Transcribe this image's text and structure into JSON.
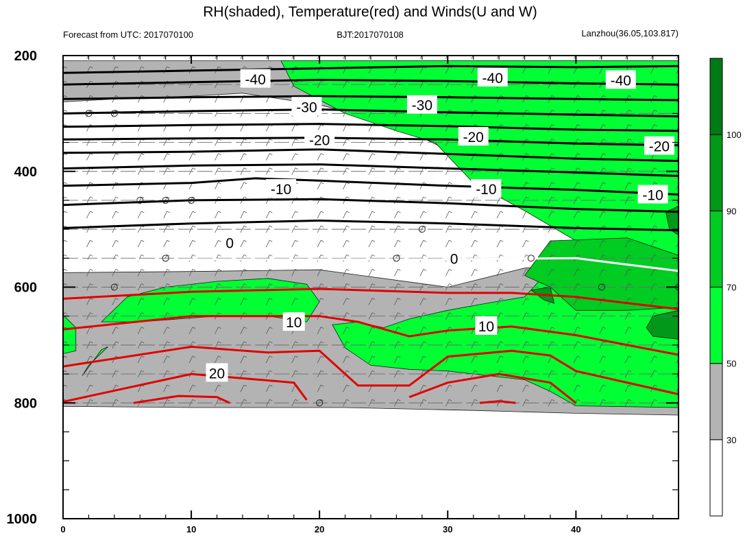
{
  "header": {
    "title": "RH(shaded), Temperature(red) and Winds(U and W)",
    "left": "Forecast from UTC: 2017070100",
    "center": "BJT:2017070108",
    "right": "Lanzhou(36.05,103.817)"
  },
  "chart_data": {
    "type": "heatmap",
    "x": {
      "range": [
        0,
        48
      ],
      "ticks": [
        0,
        10,
        20,
        30,
        40
      ],
      "tick_labels": [
        "0",
        "10",
        "20",
        "30",
        "40"
      ]
    },
    "y": {
      "range": [
        1000,
        200
      ],
      "ticks": [
        200,
        400,
        600,
        800,
        1000
      ],
      "tick_labels": [
        "200",
        "400",
        "600",
        "800",
        "1000"
      ],
      "minor_step": 50
    },
    "colorbar": {
      "levels": [
        30,
        50,
        70,
        90,
        100
      ],
      "tick_labels": [
        "30",
        "50",
        "70",
        "90",
        "100"
      ],
      "colors": [
        "#ffffff",
        "#b3b3b3",
        "#00ff33",
        "#00cc22",
        "#009919",
        "#007a14"
      ]
    },
    "rh_regions": [
      {
        "level": 30,
        "color": "#b3b3b3",
        "polygon": [
          [
            0,
            209
          ],
          [
            48,
            209
          ],
          [
            48,
            821
          ],
          [
            40,
            818
          ],
          [
            32,
            813
          ],
          [
            22,
            808
          ],
          [
            10,
            808
          ],
          [
            0,
            806
          ],
          [
            0,
            575
          ],
          [
            10,
            573
          ],
          [
            20,
            570
          ],
          [
            30,
            600
          ],
          [
            36,
            567
          ],
          [
            48,
            553
          ],
          [
            48,
            462
          ],
          [
            40,
            430
          ],
          [
            32,
            385
          ],
          [
            26,
            320
          ],
          [
            20,
            285
          ],
          [
            14,
            265
          ],
          [
            10,
            270
          ],
          [
            4,
            275
          ],
          [
            0,
            280
          ]
        ]
      },
      {
        "level": 50,
        "color": "#00ff33",
        "polygon": [
          [
            17,
            209
          ],
          [
            48,
            209
          ],
          [
            48,
            808
          ],
          [
            40,
            805
          ],
          [
            38,
            780
          ],
          [
            36,
            760
          ],
          [
            30,
            745
          ],
          [
            27,
            742
          ],
          [
            24,
            735
          ],
          [
            22,
            705
          ],
          [
            21,
            665
          ],
          [
            23,
            660
          ],
          [
            25,
            670
          ],
          [
            27,
            655
          ],
          [
            30,
            640
          ],
          [
            33,
            628
          ],
          [
            36,
            617
          ],
          [
            40,
            520
          ],
          [
            36,
            468
          ],
          [
            32,
            420
          ],
          [
            29,
            350
          ],
          [
            26,
            330
          ],
          [
            22,
            300
          ],
          [
            18,
            253
          ]
        ]
      },
      {
        "level": 50,
        "color": "#00ff33",
        "polygon": [
          [
            5,
            617
          ],
          [
            8,
            600
          ],
          [
            12,
            590
          ],
          [
            16,
            585
          ],
          [
            19,
            595
          ],
          [
            20,
            625
          ],
          [
            19,
            660
          ],
          [
            16,
            650
          ],
          [
            12,
            650
          ],
          [
            6,
            660
          ],
          [
            3,
            660
          ]
        ]
      },
      {
        "level": 50,
        "color": "#00ff33",
        "polygon": [
          [
            0,
            648
          ],
          [
            1,
            670
          ],
          [
            1,
            710
          ],
          [
            0,
            715
          ]
        ]
      },
      {
        "level": 50,
        "color": "#00ff33",
        "polygon": [
          [
            3,
            708
          ],
          [
            3.5,
            703
          ],
          [
            2,
            735
          ],
          [
            1.5,
            753
          ]
        ]
      },
      {
        "level": 70,
        "color": "#00cc22",
        "polygon": [
          [
            38,
            520
          ],
          [
            44,
            515
          ],
          [
            48,
            545
          ],
          [
            48,
            635
          ],
          [
            44,
            640
          ],
          [
            40,
            640
          ],
          [
            38,
            600
          ],
          [
            36,
            580
          ]
        ]
      },
      {
        "level": 90,
        "color": "#009919",
        "polygon": [
          [
            47,
            470
          ],
          [
            48,
            460
          ],
          [
            48,
            510
          ],
          [
            47.3,
            500
          ]
        ]
      },
      {
        "level": 90,
        "color": "#009919",
        "polygon": [
          [
            36.5,
            605
          ],
          [
            38,
            600
          ],
          [
            38.3,
            628
          ],
          [
            37.5,
            622
          ]
        ]
      },
      {
        "level": 90,
        "color": "#009919",
        "polygon": [
          [
            46,
            650
          ],
          [
            48,
            640
          ],
          [
            48,
            690
          ],
          [
            46,
            685
          ],
          [
            45.5,
            670
          ]
        ]
      }
    ],
    "temperature_contours": [
      {
        "value": -40,
        "color": "#000000",
        "points": [
          [
            0,
            230
          ],
          [
            10,
            226
          ],
          [
            20,
            222
          ],
          [
            30,
            218
          ],
          [
            40,
            220
          ],
          [
            48,
            218
          ]
        ]
      },
      {
        "value": -40,
        "color": "#000000",
        "points": [
          [
            0,
            250
          ],
          [
            10,
            246
          ],
          [
            20,
            242
          ],
          [
            30,
            244
          ],
          [
            40,
            248
          ],
          [
            48,
            250
          ]
        ]
      },
      {
        "value": -30,
        "color": "#000000",
        "points": [
          [
            0,
            275
          ],
          [
            10,
            272
          ],
          [
            20,
            270
          ],
          [
            30,
            272
          ],
          [
            40,
            275
          ],
          [
            48,
            277
          ]
        ]
      },
      {
        "value": -30,
        "color": "#000000",
        "points": [
          [
            0,
            300
          ],
          [
            10,
            296
          ],
          [
            20,
            293
          ],
          [
            30,
            298
          ],
          [
            40,
            302
          ],
          [
            48,
            305
          ]
        ]
      },
      {
        "value": -20,
        "color": "#000000",
        "points": [
          [
            0,
            323
          ],
          [
            10,
            320
          ],
          [
            20,
            318
          ],
          [
            30,
            322
          ],
          [
            40,
            328
          ],
          [
            48,
            330
          ]
        ]
      },
      {
        "value": -20,
        "color": "#000000",
        "points": [
          [
            0,
            345
          ],
          [
            10,
            343
          ],
          [
            20,
            342
          ],
          [
            30,
            345
          ],
          [
            40,
            352
          ],
          [
            48,
            355
          ]
        ]
      },
      {
        "value": -20,
        "color": "#000000",
        "points": [
          [
            0,
            368
          ],
          [
            10,
            366
          ],
          [
            20,
            362
          ],
          [
            30,
            370
          ],
          [
            40,
            378
          ],
          [
            48,
            382
          ]
        ]
      },
      {
        "value": -10,
        "color": "#000000",
        "points": [
          [
            0,
            395
          ],
          [
            10,
            390
          ],
          [
            20,
            388
          ],
          [
            30,
            395
          ],
          [
            40,
            402
          ],
          [
            48,
            408
          ]
        ]
      },
      {
        "value": -10,
        "color": "#000000",
        "points": [
          [
            0,
            425
          ],
          [
            10,
            420
          ],
          [
            15,
            412
          ],
          [
            20,
            416
          ],
          [
            30,
            425
          ],
          [
            40,
            432
          ],
          [
            48,
            440
          ]
        ]
      },
      {
        "value": -10,
        "color": "#000000",
        "points": [
          [
            0,
            458
          ],
          [
            10,
            450
          ],
          [
            20,
            448
          ],
          [
            30,
            455
          ],
          [
            40,
            465
          ],
          [
            48,
            470
          ]
        ]
      },
      {
        "value": 0,
        "color": "#000000",
        "points": [
          [
            0,
            498
          ],
          [
            10,
            490
          ],
          [
            20,
            485
          ],
          [
            30,
            490
          ],
          [
            40,
            498
          ],
          [
            48,
            502
          ]
        ]
      },
      {
        "value": 0,
        "color": "#ffffff",
        "points": [
          [
            0,
            555
          ],
          [
            10,
            552
          ],
          [
            20,
            552
          ],
          [
            30,
            552
          ],
          [
            40,
            550
          ],
          [
            48,
            572
          ]
        ]
      },
      {
        "value": 10,
        "color": "#e00000",
        "points": [
          [
            0,
            620
          ],
          [
            10,
            608
          ],
          [
            20,
            603
          ],
          [
            30,
            610
          ],
          [
            35,
            610
          ],
          [
            40,
            617
          ],
          [
            48,
            638
          ]
        ]
      },
      {
        "value": 10,
        "color": "#e00000",
        "points": [
          [
            0,
            673
          ],
          [
            10,
            650
          ],
          [
            20,
            650
          ],
          [
            23,
            660
          ],
          [
            27,
            685
          ],
          [
            30,
            675
          ],
          [
            35,
            668
          ],
          [
            40,
            683
          ],
          [
            48,
            717
          ]
        ]
      },
      {
        "value": 20,
        "color": "#e00000",
        "points": [
          [
            0,
            737
          ],
          [
            10,
            703
          ],
          [
            16,
            713
          ],
          [
            20,
            710
          ],
          [
            23,
            770
          ],
          [
            27,
            770
          ],
          [
            30,
            720
          ],
          [
            35,
            710
          ],
          [
            38,
            718
          ],
          [
            40,
            745
          ],
          [
            48,
            785
          ]
        ]
      },
      {
        "value": 20,
        "color": "#e00000",
        "points": [
          [
            0,
            798
          ],
          [
            10,
            750
          ],
          [
            18,
            765
          ],
          [
            19,
            795
          ]
        ]
      },
      {
        "value": 20,
        "color": "#e00000",
        "points": [
          [
            27,
            790
          ],
          [
            30,
            765
          ],
          [
            34,
            750
          ],
          [
            38,
            765
          ],
          [
            40,
            800
          ]
        ]
      },
      {
        "value": 20,
        "color": "#e00000",
        "points": [
          [
            5.5,
            800
          ],
          [
            9,
            788
          ],
          [
            12,
            790
          ],
          [
            13,
            800
          ]
        ]
      },
      {
        "value": 20,
        "color": "#e00000",
        "points": [
          [
            32.5,
            800
          ],
          [
            34,
            797
          ],
          [
            35.3,
            800
          ]
        ]
      }
    ],
    "contour_labels": [
      {
        "text": "-40",
        "x": 15,
        "y": 240
      },
      {
        "text": "-40",
        "x": 33.5,
        "y": 238
      },
      {
        "text": "-40",
        "x": 43.5,
        "y": 242
      },
      {
        "text": "-30",
        "x": 19,
        "y": 288
      },
      {
        "text": "-30",
        "x": 28,
        "y": 285
      },
      {
        "text": "-20",
        "x": 20,
        "y": 345
      },
      {
        "text": "-20",
        "x": 32,
        "y": 340
      },
      {
        "text": "-20",
        "x": 46.5,
        "y": 356
      },
      {
        "text": "-10",
        "x": 17,
        "y": 430
      },
      {
        "text": "-10",
        "x": 33,
        "y": 430
      },
      {
        "text": "-10",
        "x": 46,
        "y": 440
      },
      {
        "text": "0",
        "x": 13,
        "y": 523
      },
      {
        "text": "0",
        "x": 30.5,
        "y": 550
      },
      {
        "text": "10",
        "x": 18,
        "y": 660
      },
      {
        "text": "10",
        "x": 33,
        "y": 667
      },
      {
        "text": "20",
        "x": 12,
        "y": 748
      }
    ],
    "calm_markers": [
      [
        2,
        300
      ],
      [
        4,
        300
      ],
      [
        6,
        450
      ],
      [
        8,
        450
      ],
      [
        10,
        450
      ],
      [
        28,
        500
      ],
      [
        8,
        550
      ],
      [
        26,
        550
      ],
      [
        36.5,
        550
      ],
      [
        4,
        600
      ],
      [
        42,
        600
      ],
      [
        48,
        600
      ],
      [
        20,
        800
      ]
    ]
  }
}
